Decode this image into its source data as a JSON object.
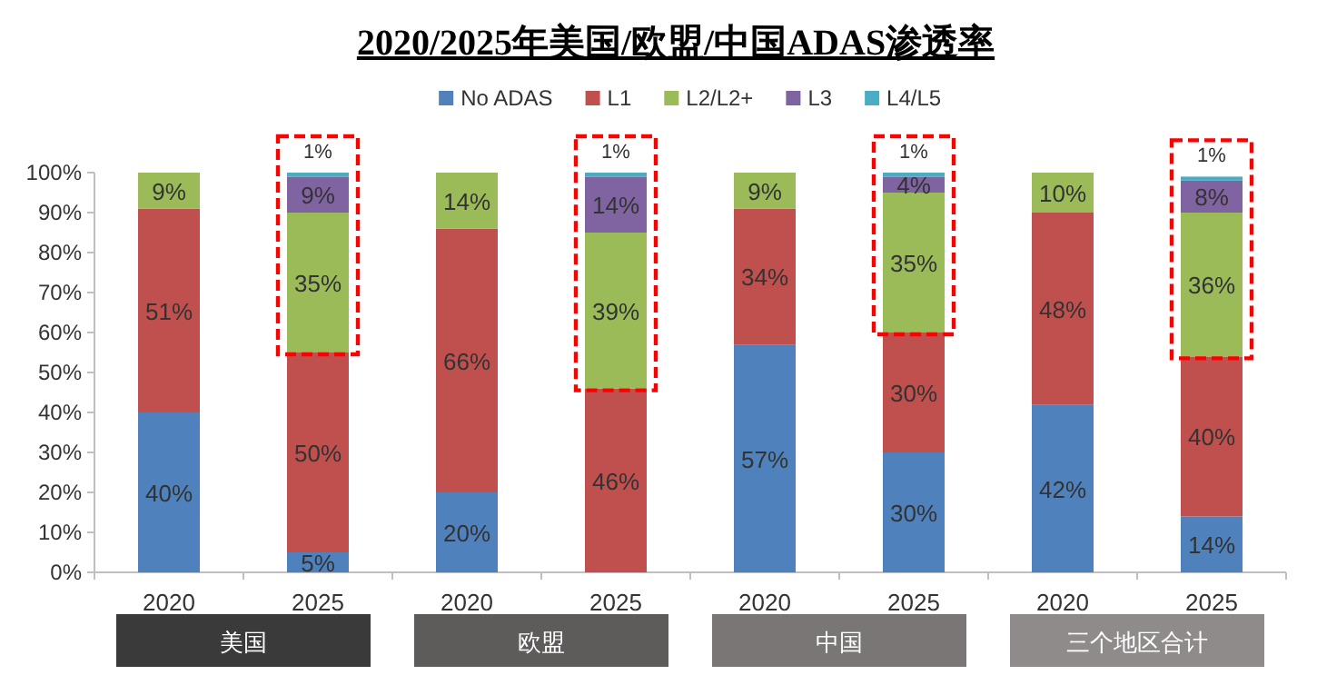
{
  "chart_data": {
    "type": "bar",
    "stacked": true,
    "title": "2020/2025年美国/欧盟/中国ADAS渗透率",
    "categories": [
      "2020",
      "2025",
      "2020",
      "2025",
      "2020",
      "2025",
      "2020",
      "2025"
    ],
    "series": [
      {
        "name": "No ADAS",
        "color": "#4f81bd",
        "values": [
          40,
          5,
          20,
          null,
          57,
          30,
          42,
          14
        ],
        "value_labels": [
          "40%",
          "5%",
          "20%",
          null,
          "57%",
          "30%",
          "42%",
          "14%"
        ]
      },
      {
        "name": "L1",
        "color": "#c0504d",
        "values": [
          51,
          50,
          66,
          46,
          34,
          30,
          48,
          40
        ],
        "value_labels": [
          "51%",
          "50%",
          "66%",
          "46%",
          "34%",
          "30%",
          "48%",
          "40%"
        ]
      },
      {
        "name": "L2/L2+",
        "color": "#9bbb59",
        "values": [
          9,
          35,
          14,
          39,
          9,
          35,
          10,
          36
        ],
        "value_labels": [
          "9%",
          "35%",
          "14%",
          "39%",
          "9%",
          "35%",
          "10%",
          "36%"
        ]
      },
      {
        "name": "L3",
        "color": "#8064a2",
        "values": [
          null,
          9,
          null,
          14,
          null,
          4,
          null,
          8
        ],
        "value_labels": [
          null,
          "9%",
          null,
          "14%",
          null,
          "4%",
          null,
          "8%"
        ]
      },
      {
        "name": "L4/L5",
        "color": "#4bacc6",
        "values": [
          null,
          1,
          null,
          1,
          null,
          1,
          null,
          1
        ],
        "value_labels": [
          null,
          "1%",
          null,
          "1%",
          null,
          "1%",
          null,
          "1%"
        ]
      }
    ],
    "ylim": [
      0,
      100
    ],
    "yticks": [
      {
        "value": 0,
        "label": "0%"
      },
      {
        "value": 10,
        "label": "10%"
      },
      {
        "value": 20,
        "label": "20%"
      },
      {
        "value": 30,
        "label": "30%"
      },
      {
        "value": 40,
        "label": "40%"
      },
      {
        "value": 50,
        "label": "50%"
      },
      {
        "value": 60,
        "label": "60%"
      },
      {
        "value": 70,
        "label": "70%"
      },
      {
        "value": 80,
        "label": "80%"
      },
      {
        "value": 90,
        "label": "90%"
      },
      {
        "value": 100,
        "label": "100%"
      }
    ],
    "legend": "top",
    "grid": false,
    "annotations": [
      "美国",
      "欧盟",
      "中国",
      "三个地区合计"
    ]
  }
}
